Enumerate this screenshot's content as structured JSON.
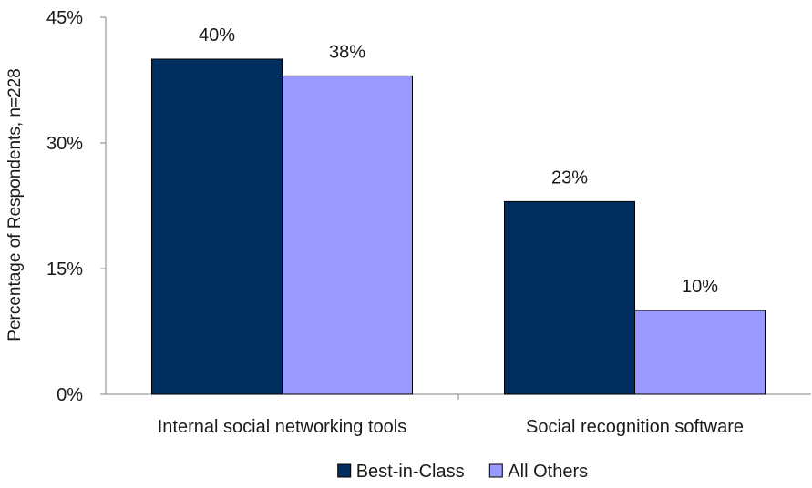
{
  "chart_data": {
    "type": "bar",
    "title": "",
    "xlabel": "",
    "ylabel": "Percentage of Respondents, n=228",
    "categories": [
      "Internal social networking tools",
      "Social recognition software"
    ],
    "series": [
      {
        "name": "Best-in-Class",
        "values": [
          40,
          23
        ],
        "labels": [
          "40%",
          "23%"
        ],
        "color": "#002f5f"
      },
      {
        "name": "All Others",
        "values": [
          38,
          10
        ],
        "labels": [
          "38%",
          "10%"
        ],
        "color": "#9999ff"
      }
    ],
    "ylim": [
      0,
      45
    ],
    "yticks": [
      0,
      15,
      30,
      45
    ],
    "ytick_labels": [
      "0%",
      "15%",
      "30%",
      "45%"
    ],
    "grid": false,
    "legend_position": "bottom",
    "colors": {
      "axis": "#808080",
      "bar_outline": "#000000"
    }
  }
}
